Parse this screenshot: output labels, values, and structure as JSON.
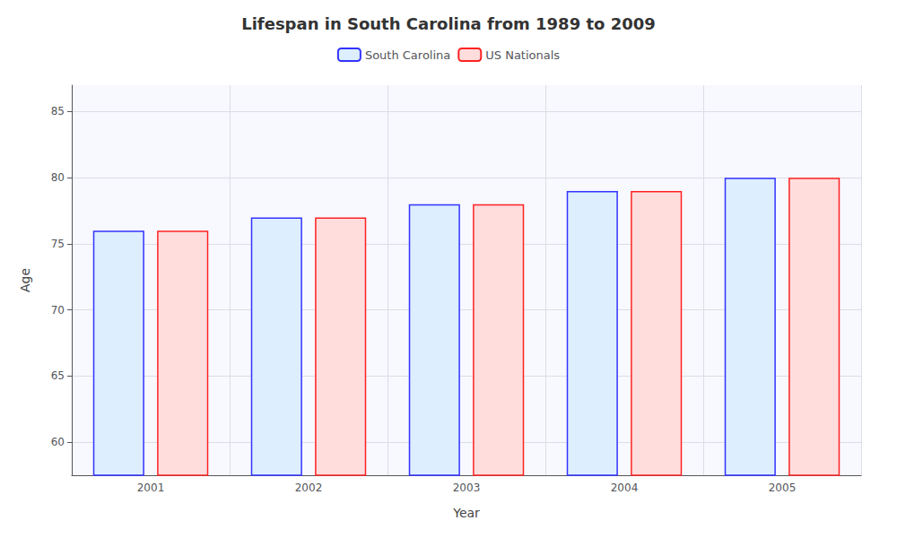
{
  "chart_data": {
    "type": "bar",
    "title": "Lifespan in South Carolina from 1989 to 2009",
    "xlabel": "Year",
    "ylabel": "Age",
    "categories": [
      "2001",
      "2002",
      "2003",
      "2004",
      "2005"
    ],
    "series": [
      {
        "name": "South Carolina",
        "color": "#ddeeff",
        "values": [
          76,
          77,
          78,
          79,
          80
        ]
      },
      {
        "name": "US Nationals",
        "color": "#ffdddd",
        "values": [
          76,
          77,
          78,
          79,
          80
        ]
      }
    ],
    "ylim": [
      57.5,
      87
    ],
    "yticks": [
      60,
      65,
      70,
      75,
      80,
      85
    ],
    "grid": true,
    "legend": "top"
  }
}
